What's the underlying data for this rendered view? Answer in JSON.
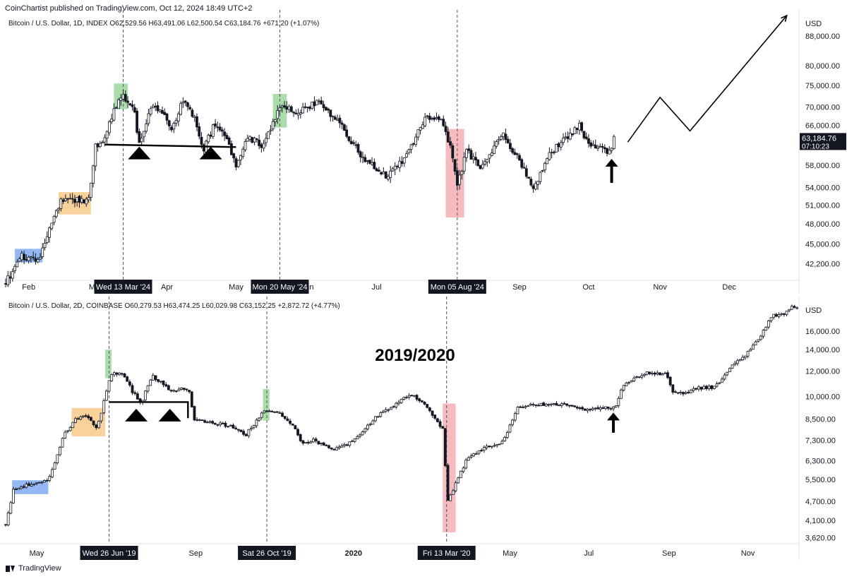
{
  "header": {
    "published": "CoinChartist published on TradingView.com, Oct 12, 2024 18:49 UTC+2"
  },
  "footer": {
    "brand": "TradingView"
  },
  "colors": {
    "candle": "#131722",
    "grid_line": "#555555",
    "highlight_blue": "#6fa0f0",
    "highlight_orange": "#f6c27a",
    "highlight_green": "#8fd18f",
    "highlight_red": "#f3a4a8",
    "price_badge": "#131722"
  },
  "chart_data": [
    {
      "type": "candlestick",
      "legend": "Bitcoin / U.S. Dollar, 1D, INDEX",
      "ohlc_label": "O62,529.56 H63,491.06 L62,500.54 C63,184.76 +671.20 (+1.07%)",
      "currency": "USD",
      "y_scale": "log",
      "ylim": [
        40200,
        94000
      ],
      "y_ticks": [
        88000,
        80000,
        75000,
        70000,
        66000,
        58000,
        54000,
        51000,
        48000,
        45000,
        42200
      ],
      "y_tick_labels": [
        "88,000.00",
        "80,000.00",
        "75,000.00",
        "70,000.00",
        "66,000.00",
        "58,000.00",
        "54,000.00",
        "51,000.00",
        "48,000.00",
        "45,000.00",
        "42,200.00"
      ],
      "last_price_label": "63,184.76",
      "countdown_label": "07:10:23",
      "last_price": 63184.76,
      "xlim": [
        "2024-01-22",
        "2024-12-31"
      ],
      "x_ticks": [
        {
          "date": "2024-02-01",
          "label": "Feb"
        },
        {
          "date": "2024-03-01",
          "label": "Mar"
        },
        {
          "date": "2024-04-01",
          "label": "Apr"
        },
        {
          "date": "2024-05-01",
          "label": "May"
        },
        {
          "date": "2024-06-01",
          "label": "Jun"
        },
        {
          "date": "2024-07-01",
          "label": "Jul"
        },
        {
          "date": "2024-08-01",
          "label": "Aug"
        },
        {
          "date": "2024-09-01",
          "label": "Sep"
        },
        {
          "date": "2024-10-01",
          "label": "Oct"
        },
        {
          "date": "2024-11-01",
          "label": "Nov"
        },
        {
          "date": "2024-12-01",
          "label": "Dec"
        }
      ],
      "date_markers": [
        {
          "date": "2024-03-13",
          "label": "Wed 13 Mar '24"
        },
        {
          "date": "2024-05-20",
          "label": "Mon 20 May '24"
        },
        {
          "date": "2024-08-05",
          "label": "Mon 05 Aug '24"
        }
      ],
      "highlights": [
        {
          "color": "blue",
          "from": "2024-01-26",
          "to": "2024-02-07",
          "low": 42400,
          "high": 44300
        },
        {
          "color": "orange",
          "from": "2024-02-14",
          "to": "2024-02-28",
          "low": 49500,
          "high": 53200
        },
        {
          "color": "green",
          "from": "2024-03-09",
          "to": "2024-03-15",
          "low": 69500,
          "high": 75500
        },
        {
          "color": "green",
          "from": "2024-05-17",
          "to": "2024-05-23",
          "low": 65500,
          "high": 73000
        },
        {
          "color": "red",
          "from": "2024-07-31",
          "to": "2024-08-08",
          "low": 49000,
          "high": 65200
        }
      ],
      "neckline": {
        "from": "2024-03-05",
        "to": "2024-05-01",
        "price": 61500,
        "start_price": 62000
      },
      "triangle_markers": [
        {
          "date": "2024-03-20",
          "price": 60200
        },
        {
          "date": "2024-04-20",
          "price": 60200
        }
      ],
      "arrow": {
        "date": "2024-10-11",
        "from_price": 54800,
        "to_price": 59200
      },
      "projection_path": [
        {
          "date": "2024-10-18",
          "price": 62500
        },
        {
          "date": "2024-11-01",
          "price": 72200
        },
        {
          "date": "2024-11-14",
          "price": 64800
        },
        {
          "date": "2024-12-26",
          "price": 94000
        }
      ],
      "waypoints": [
        {
          "date": "2024-01-22",
          "price": 39800
        },
        {
          "date": "2024-01-26",
          "price": 41600
        },
        {
          "date": "2024-01-29",
          "price": 43200
        },
        {
          "date": "2024-02-05",
          "price": 42800
        },
        {
          "date": "2024-02-08",
          "price": 45200
        },
        {
          "date": "2024-02-13",
          "price": 49800
        },
        {
          "date": "2024-02-15",
          "price": 51800
        },
        {
          "date": "2024-02-27",
          "price": 51700
        },
        {
          "date": "2024-03-01",
          "price": 61800
        },
        {
          "date": "2024-03-05",
          "price": 63000
        },
        {
          "date": "2024-03-08",
          "price": 68000
        },
        {
          "date": "2024-03-13",
          "price": 73000
        },
        {
          "date": "2024-03-18",
          "price": 68500
        },
        {
          "date": "2024-03-20",
          "price": 61900
        },
        {
          "date": "2024-03-25",
          "price": 70000
        },
        {
          "date": "2024-03-29",
          "price": 69500
        },
        {
          "date": "2024-04-03",
          "price": 65200
        },
        {
          "date": "2024-04-08",
          "price": 71500
        },
        {
          "date": "2024-04-13",
          "price": 67200
        },
        {
          "date": "2024-04-17",
          "price": 61200
        },
        {
          "date": "2024-04-22",
          "price": 66500
        },
        {
          "date": "2024-04-27",
          "price": 63600
        },
        {
          "date": "2024-05-01",
          "price": 57800
        },
        {
          "date": "2024-05-06",
          "price": 63500
        },
        {
          "date": "2024-05-13",
          "price": 61800
        },
        {
          "date": "2024-05-17",
          "price": 66800
        },
        {
          "date": "2024-05-21",
          "price": 70800
        },
        {
          "date": "2024-05-28",
          "price": 68500
        },
        {
          "date": "2024-06-05",
          "price": 71300
        },
        {
          "date": "2024-06-15",
          "price": 66300
        },
        {
          "date": "2024-06-24",
          "price": 60000
        },
        {
          "date": "2024-07-05",
          "price": 56000
        },
        {
          "date": "2024-07-14",
          "price": 59800
        },
        {
          "date": "2024-07-22",
          "price": 67600
        },
        {
          "date": "2024-07-29",
          "price": 67500
        },
        {
          "date": "2024-08-02",
          "price": 61500
        },
        {
          "date": "2024-08-05",
          "price": 54000
        },
        {
          "date": "2024-08-09",
          "price": 60800
        },
        {
          "date": "2024-08-15",
          "price": 57800
        },
        {
          "date": "2024-08-25",
          "price": 64000
        },
        {
          "date": "2024-09-02",
          "price": 58000
        },
        {
          "date": "2024-09-07",
          "price": 53800
        },
        {
          "date": "2024-09-14",
          "price": 59800
        },
        {
          "date": "2024-09-20",
          "price": 63000
        },
        {
          "date": "2024-09-27",
          "price": 65800
        },
        {
          "date": "2024-10-01",
          "price": 61800
        },
        {
          "date": "2024-10-05",
          "price": 62000
        },
        {
          "date": "2024-10-10",
          "price": 60300
        },
        {
          "date": "2024-10-12",
          "price": 63185
        }
      ]
    },
    {
      "type": "candlestick",
      "legend": "Bitcoin / U.S. Dollar, 2D, COINBASE",
      "ohlc_label": "O60,279.53 H63,474.25 L60,029.98 C63,152.25 +2,872.72 (+4.77%)",
      "currency": "USD",
      "y_scale": "log",
      "ylim": [
        3500,
        19700
      ],
      "y_ticks": [
        16000,
        14000,
        12000,
        10000,
        8500,
        7300,
        6300,
        5500,
        4700,
        4100,
        3620
      ],
      "y_tick_labels": [
        "16,000.00",
        "14,000.00",
        "12,000.00",
        "10,000.00",
        "8,500.00",
        "7,300.00",
        "6,300.00",
        "5,500.00",
        "4,700.00",
        "4,100.00",
        "3,620.00"
      ],
      "title": "2019/2020",
      "xlim": [
        "2019-04-07",
        "2020-12-10"
      ],
      "x_ticks": [
        {
          "date": "2019-05-01",
          "label": "May"
        },
        {
          "date": "2019-09-01",
          "label": "Sep"
        },
        {
          "date": "2020-01-01",
          "label": "2020"
        },
        {
          "date": "2020-05-01",
          "label": "May"
        },
        {
          "date": "2020-07-01",
          "label": "Jul"
        },
        {
          "date": "2020-09-01",
          "label": "Sep"
        },
        {
          "date": "2020-11-01",
          "label": "Nov"
        }
      ],
      "date_markers": [
        {
          "date": "2019-06-26",
          "label": "Wed 26 Jun '19"
        },
        {
          "date": "2019-10-26",
          "label": "Sat 26 Oct '19"
        },
        {
          "date": "2020-03-13",
          "label": "Fri 13 Mar '20"
        }
      ],
      "highlights": [
        {
          "color": "blue",
          "from": "2019-04-12",
          "to": "2019-05-10",
          "low": 4950,
          "high": 5470
        },
        {
          "color": "orange",
          "from": "2019-05-28",
          "to": "2019-06-23",
          "low": 7500,
          "high": 9200
        },
        {
          "color": "green",
          "from": "2019-06-23",
          "to": "2019-06-28",
          "low": 11400,
          "high": 14000
        },
        {
          "color": "green",
          "from": "2019-10-23",
          "to": "2019-10-28",
          "low": 8400,
          "high": 10550
        },
        {
          "color": "red",
          "from": "2020-03-10",
          "to": "2020-03-20",
          "low": 3760,
          "high": 9500
        }
      ],
      "neckline": {
        "from": "2019-06-26",
        "to": "2019-08-26",
        "price": 9600,
        "end_drop_price": 8550
      },
      "triangle_markers": [
        {
          "date": "2019-07-17",
          "price": 8700
        },
        {
          "date": "2019-08-12",
          "price": 8700
        }
      ],
      "arrow": {
        "date": "2020-07-20",
        "from_price": 7700,
        "to_price": 8900
      },
      "waypoints": [
        {
          "date": "2019-04-07",
          "price": 4000
        },
        {
          "date": "2019-04-13",
          "price": 5100
        },
        {
          "date": "2019-04-25",
          "price": 5300
        },
        {
          "date": "2019-05-09",
          "price": 5450
        },
        {
          "date": "2019-05-14",
          "price": 6000
        },
        {
          "date": "2019-05-22",
          "price": 7600
        },
        {
          "date": "2019-05-31",
          "price": 8500
        },
        {
          "date": "2019-06-08",
          "price": 8700
        },
        {
          "date": "2019-06-17",
          "price": 8000
        },
        {
          "date": "2019-06-23",
          "price": 10000
        },
        {
          "date": "2019-06-27",
          "price": 11800
        },
        {
          "date": "2019-07-07",
          "price": 11700
        },
        {
          "date": "2019-07-15",
          "price": 10200
        },
        {
          "date": "2019-07-21",
          "price": 9600
        },
        {
          "date": "2019-07-29",
          "price": 11600
        },
        {
          "date": "2019-08-06",
          "price": 11000
        },
        {
          "date": "2019-08-14",
          "price": 10300
        },
        {
          "date": "2019-08-20",
          "price": 10600
        },
        {
          "date": "2019-08-27",
          "price": 10300
        },
        {
          "date": "2019-08-31",
          "price": 8500
        },
        {
          "date": "2019-09-12",
          "price": 8300
        },
        {
          "date": "2019-09-27",
          "price": 8100
        },
        {
          "date": "2019-10-10",
          "price": 7600
        },
        {
          "date": "2019-10-24",
          "price": 9100
        },
        {
          "date": "2019-11-02",
          "price": 9000
        },
        {
          "date": "2019-11-15",
          "price": 8200
        },
        {
          "date": "2019-11-22",
          "price": 7100
        },
        {
          "date": "2019-12-01",
          "price": 7300
        },
        {
          "date": "2019-12-17",
          "price": 6800
        },
        {
          "date": "2019-12-31",
          "price": 7200
        },
        {
          "date": "2020-01-18",
          "price": 8600
        },
        {
          "date": "2020-02-01",
          "price": 9400
        },
        {
          "date": "2020-02-14",
          "price": 10200
        },
        {
          "date": "2020-02-25",
          "price": 9400
        },
        {
          "date": "2020-03-03",
          "price": 8700
        },
        {
          "date": "2020-03-11",
          "price": 7800
        },
        {
          "date": "2020-03-13",
          "price": 4700
        },
        {
          "date": "2020-03-19",
          "price": 5200
        },
        {
          "date": "2020-03-28",
          "price": 6300
        },
        {
          "date": "2020-04-11",
          "price": 6900
        },
        {
          "date": "2020-04-26",
          "price": 7200
        },
        {
          "date": "2020-05-07",
          "price": 9300
        },
        {
          "date": "2020-05-20",
          "price": 9400
        },
        {
          "date": "2020-06-02",
          "price": 9500
        },
        {
          "date": "2020-06-14",
          "price": 9400
        },
        {
          "date": "2020-06-28",
          "price": 9100
        },
        {
          "date": "2020-07-12",
          "price": 9200
        },
        {
          "date": "2020-07-22",
          "price": 9300
        },
        {
          "date": "2020-07-27",
          "price": 10800
        },
        {
          "date": "2020-08-06",
          "price": 11400
        },
        {
          "date": "2020-08-16",
          "price": 11900
        },
        {
          "date": "2020-08-30",
          "price": 11700
        },
        {
          "date": "2020-09-04",
          "price": 10300
        },
        {
          "date": "2020-09-12",
          "price": 10200
        },
        {
          "date": "2020-09-22",
          "price": 10600
        },
        {
          "date": "2020-10-06",
          "price": 10700
        },
        {
          "date": "2020-10-12",
          "price": 11300
        },
        {
          "date": "2020-10-21",
          "price": 12600
        },
        {
          "date": "2020-10-31",
          "price": 13600
        },
        {
          "date": "2020-11-10",
          "price": 15300
        },
        {
          "date": "2020-11-20",
          "price": 17900
        },
        {
          "date": "2020-11-28",
          "price": 18000
        },
        {
          "date": "2020-12-04",
          "price": 19000
        },
        {
          "date": "2020-12-10",
          "price": 18800
        }
      ]
    }
  ]
}
